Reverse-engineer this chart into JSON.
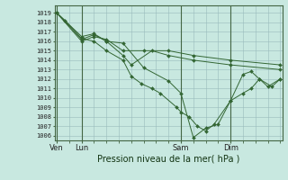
{
  "background_color": "#c8e8e0",
  "grid_color": "#99bbbb",
  "line_color": "#336633",
  "marker_color": "#336633",
  "title": "Pression niveau de la mer( hPa )",
  "ylabel_values": [
    1006,
    1007,
    1008,
    1009,
    1010,
    1011,
    1012,
    1013,
    1014,
    1015,
    1016,
    1017,
    1018,
    1019
  ],
  "ylim": [
    1005.5,
    1019.8
  ],
  "xtick_labels": [
    "Ven",
    "Lun",
    "Sam",
    "Dim"
  ],
  "xtick_positions": [
    0,
    12,
    60,
    84
  ],
  "xlim": [
    -1,
    109
  ],
  "series": [
    [
      0,
      1019.0,
      4,
      1018.2,
      12,
      1016.3,
      18,
      1016.0,
      24,
      1015.0,
      32,
      1014.0,
      36,
      1012.3,
      41,
      1011.5,
      46,
      1011.0,
      50,
      1010.5,
      58,
      1009.0,
      60,
      1008.5,
      64,
      1008.0,
      68,
      1007.0,
      72,
      1006.5,
      76,
      1007.2,
      84,
      1009.7,
      90,
      1010.5,
      94,
      1011.0,
      98,
      1012.0,
      104,
      1011.2,
      108,
      1012.0
    ],
    [
      0,
      1019.0,
      12,
      1016.5,
      18,
      1016.8,
      24,
      1016.0,
      32,
      1014.5,
      36,
      1013.5,
      46,
      1015.0,
      54,
      1014.5,
      66,
      1014.0,
      84,
      1013.5,
      108,
      1013.0
    ],
    [
      0,
      1019.0,
      12,
      1016.0,
      18,
      1016.5,
      24,
      1016.2,
      32,
      1015.0,
      42,
      1015.0,
      54,
      1015.0,
      66,
      1014.5,
      84,
      1014.0,
      108,
      1013.5
    ],
    [
      0,
      1019.0,
      12,
      1016.2,
      18,
      1016.7,
      24,
      1016.0,
      32,
      1015.8,
      42,
      1013.2,
      54,
      1011.8,
      60,
      1010.5,
      66,
      1005.8,
      72,
      1006.8,
      78,
      1007.2,
      84,
      1009.7,
      90,
      1012.5,
      94,
      1012.8,
      98,
      1012.0,
      102,
      1011.2,
      108,
      1012.0
    ]
  ]
}
